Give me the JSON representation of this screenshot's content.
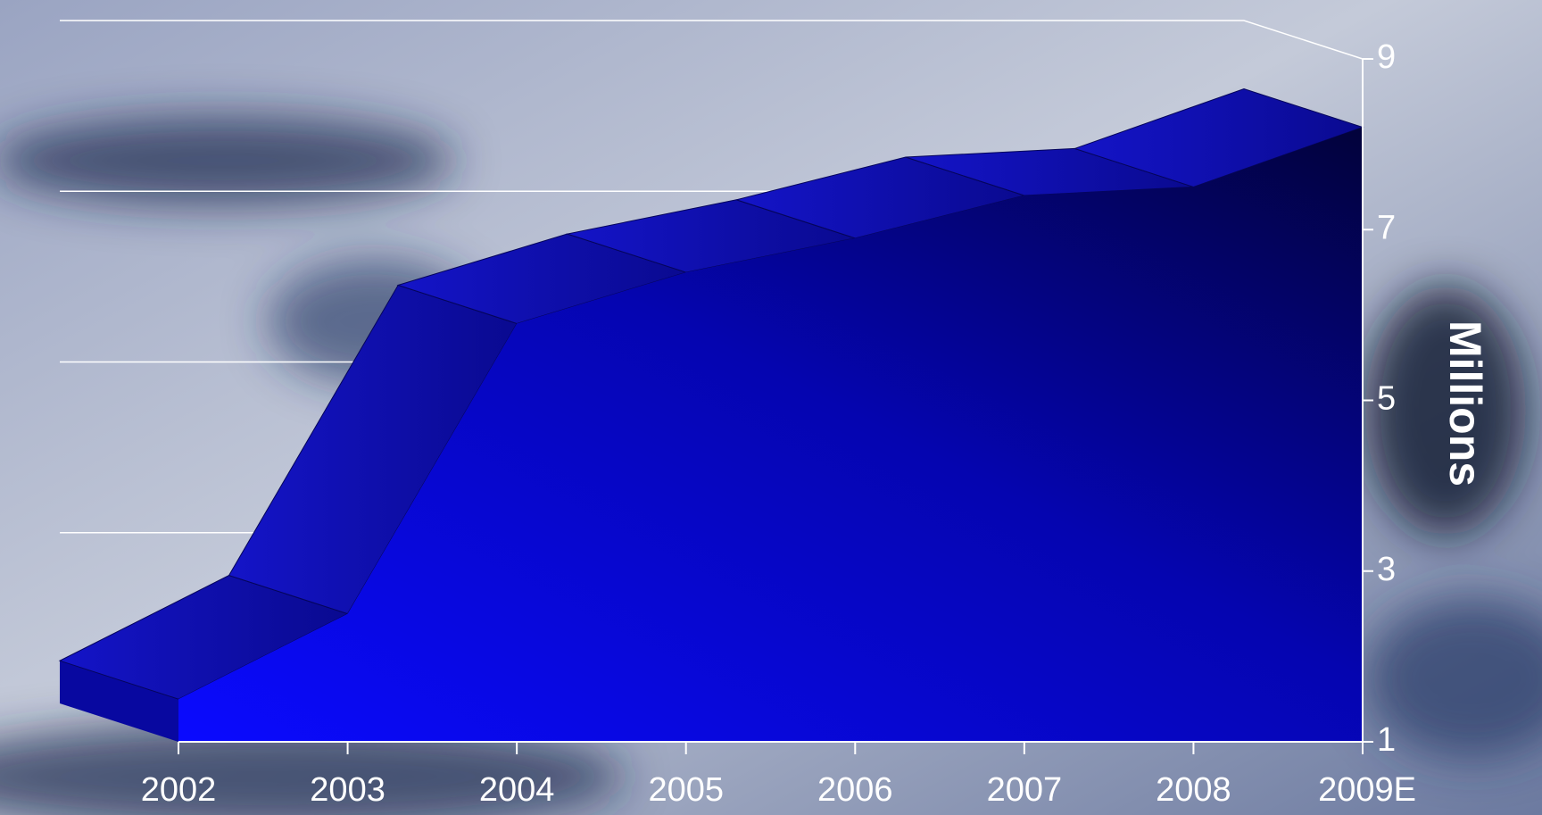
{
  "chart_data": {
    "type": "area3d",
    "categories": [
      "2002",
      "2003",
      "2004",
      "2005",
      "2006",
      "2007",
      "2008",
      "2009E"
    ],
    "values": [
      1.5,
      2.5,
      5.9,
      6.5,
      6.9,
      7.4,
      7.5,
      8.2
    ],
    "color": "#0a0ae8",
    "ylim": [
      1,
      9
    ],
    "yticks": [
      1,
      3,
      5,
      7,
      9
    ],
    "ylabel": "Millions",
    "grid": true
  }
}
